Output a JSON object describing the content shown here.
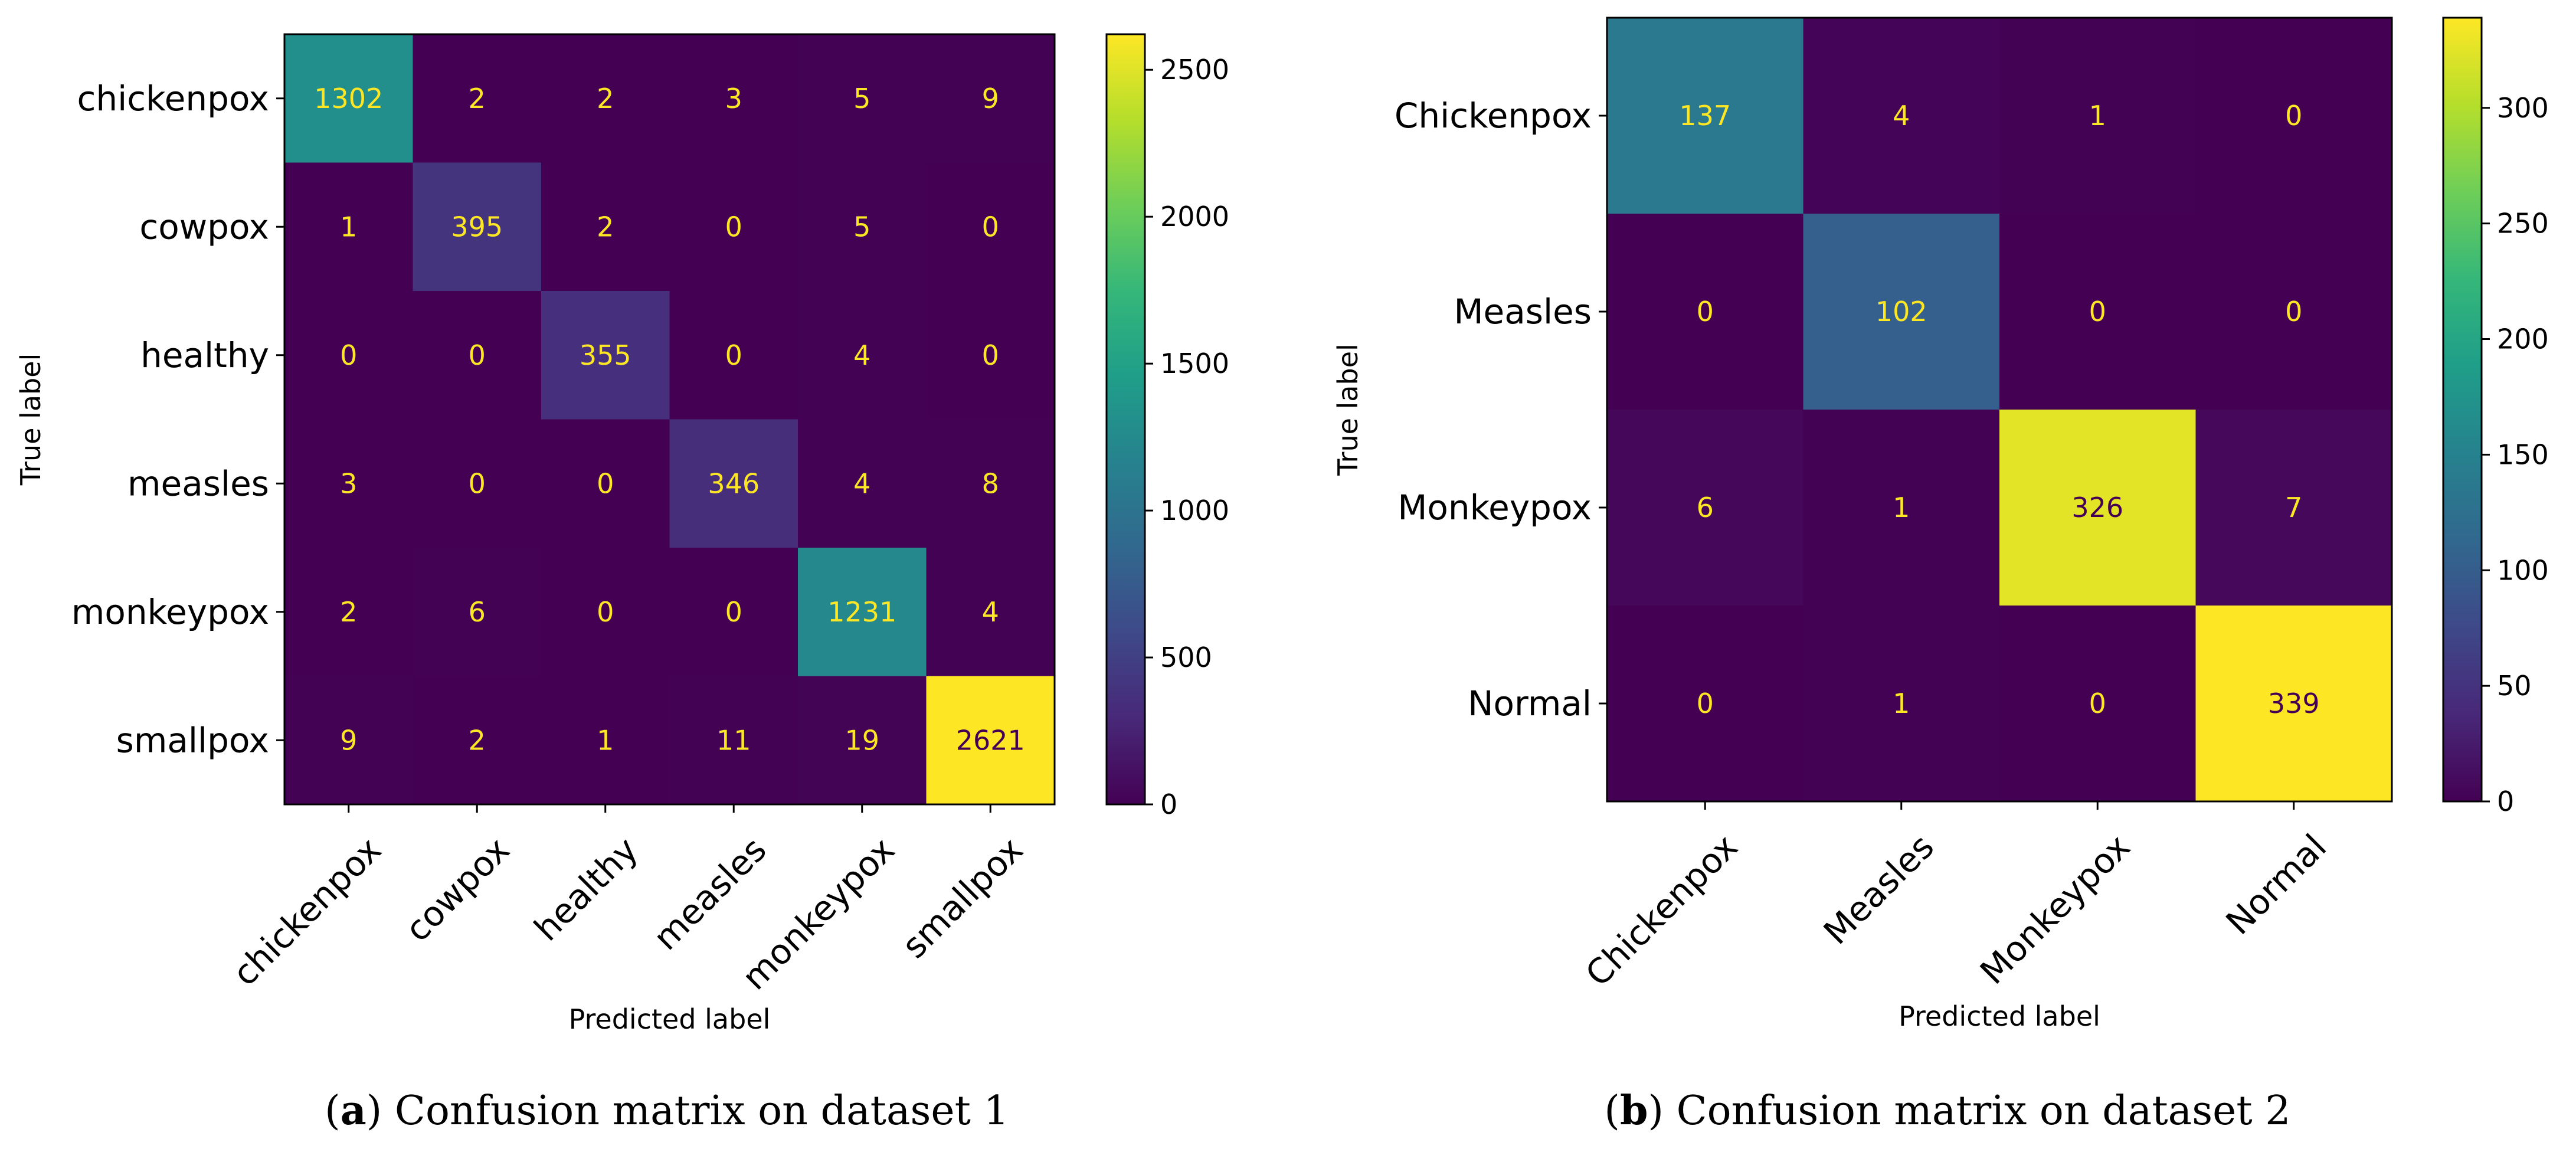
{
  "chart_data": [
    {
      "type": "heatmap",
      "subtitle_label": "a",
      "caption": "Confusion matrix on dataset 1",
      "xlabel": "Predicted label",
      "ylabel": "True label",
      "rows": [
        "chickenpox",
        "cowpox",
        "healthy",
        "measles",
        "monkeypox",
        "smallpox"
      ],
      "columns": [
        "chickenpox",
        "cowpox",
        "healthy",
        "measles",
        "monkeypox",
        "smallpox"
      ],
      "matrix": [
        [
          1302,
          2,
          2,
          3,
          5,
          9
        ],
        [
          1,
          395,
          2,
          0,
          5,
          0
        ],
        [
          0,
          0,
          355,
          0,
          4,
          0
        ],
        [
          3,
          0,
          0,
          346,
          4,
          8
        ],
        [
          2,
          6,
          0,
          0,
          1231,
          4
        ],
        [
          9,
          2,
          1,
          11,
          19,
          2621
        ]
      ],
      "colorbar": {
        "min": 0,
        "max": 2621,
        "ticks": [
          0,
          500,
          1000,
          1500,
          2000,
          2500
        ]
      },
      "colormap": [
        "#440154",
        "#482878",
        "#3e4989",
        "#31688e",
        "#26828e",
        "#1f9e89",
        "#35b779",
        "#6ece58",
        "#b5de2b",
        "#fde725"
      ]
    },
    {
      "type": "heatmap",
      "subtitle_label": "b",
      "caption": "Confusion matrix on dataset 2",
      "xlabel": "Predicted label",
      "ylabel": "True label",
      "rows": [
        "Chickenpox",
        "Measles",
        "Monkeypox",
        "Normal"
      ],
      "columns": [
        "Chickenpox",
        "Measles",
        "Monkeypox",
        "Normal"
      ],
      "matrix": [
        [
          137,
          4,
          1,
          0
        ],
        [
          0,
          102,
          0,
          0
        ],
        [
          6,
          1,
          326,
          7
        ],
        [
          0,
          1,
          0,
          339
        ]
      ],
      "colorbar": {
        "min": 0,
        "max": 339,
        "ticks": [
          0,
          50,
          100,
          150,
          200,
          250,
          300
        ]
      },
      "colormap": [
        "#440154",
        "#482878",
        "#3e4989",
        "#31688e",
        "#26828e",
        "#1f9e89",
        "#35b779",
        "#6ece58",
        "#b5de2b",
        "#fde725"
      ]
    }
  ]
}
